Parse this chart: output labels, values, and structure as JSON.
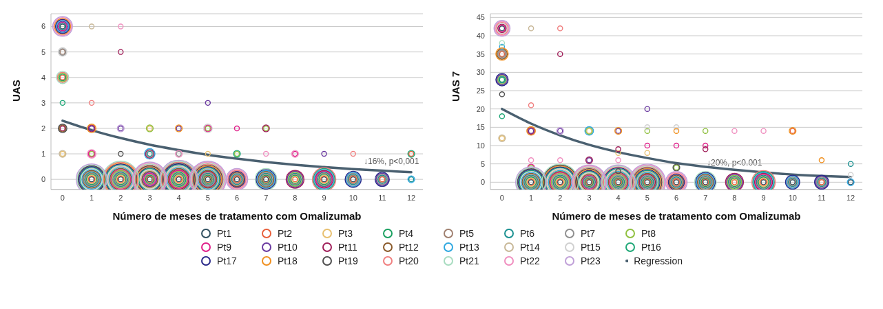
{
  "chart_data": [
    {
      "type": "bubble",
      "ylabel": "UAS",
      "xlabel": "Número de meses de tratamento com Omalizumab",
      "x": [
        0,
        1,
        2,
        3,
        4,
        5,
        6,
        7,
        8,
        9,
        10,
        11,
        12
      ],
      "xlim": [
        -0.4,
        12.4
      ],
      "xticks": [
        0,
        1,
        2,
        3,
        4,
        5,
        6,
        7,
        8,
        9,
        10,
        11,
        12
      ],
      "ylim": [
        -0.4,
        6.5
      ],
      "yticks": [
        0,
        1,
        2,
        3,
        4,
        5,
        6
      ],
      "grid": "y",
      "legend": "bottom",
      "marker": "circle",
      "annotations": [
        "↓16%, p<0,001"
      ],
      "series": [
        {
          "name": "Pt1",
          "color": "#2f4f5f",
          "values": [
            6,
            0,
            0,
            0,
            0,
            0,
            0,
            0,
            null,
            0,
            0,
            null,
            null
          ],
          "sizes": [
            0.016,
            0.016,
            0.016,
            0.016,
            0.016,
            0.016,
            0.016,
            0.016,
            null,
            0.016,
            0.016,
            null,
            null
          ]
        },
        {
          "name": "Pt2",
          "color": "#e8603c",
          "values": [
            4,
            0,
            0,
            0,
            0,
            0,
            0,
            0,
            0,
            0,
            0,
            0,
            1
          ],
          "sizes": [
            0.016,
            0.031,
            0.031,
            0.031,
            0.031,
            0.031,
            0.031,
            0.031,
            0.016,
            0.031,
            0.031,
            0.016,
            0.016
          ]
        },
        {
          "name": "Pt3",
          "color": "#e8c070",
          "values": [
            1,
            0,
            0,
            2,
            0,
            1,
            null,
            null,
            0,
            0,
            null,
            null,
            null
          ],
          "sizes": [
            0.016,
            0.05,
            0.05,
            0.016,
            0.05,
            0.016,
            null,
            null,
            0.031,
            0.05,
            null,
            null,
            null
          ]
        },
        {
          "name": "Pt4",
          "color": "#1aa060",
          "values": [
            4,
            0,
            0,
            0,
            0,
            0,
            null,
            0,
            0,
            0,
            null,
            null,
            null
          ],
          "sizes": [
            0.031,
            0.074,
            0.074,
            0.05,
            0.074,
            0.05,
            null,
            0.05,
            0.05,
            0.074,
            null,
            null,
            null
          ]
        },
        {
          "name": "Pt5",
          "color": "#a08070",
          "values": [
            5,
            0,
            0,
            0,
            0,
            0,
            0,
            0,
            0,
            0,
            0,
            0,
            null
          ],
          "sizes": [
            0.016,
            0.103,
            0.103,
            0.074,
            0.103,
            0.074,
            0.05,
            0.074,
            0.074,
            0.103,
            0.05,
            0.031,
            null
          ]
        },
        {
          "name": "Pt6",
          "color": "#1a9090",
          "values": [
            6,
            0,
            0,
            1,
            0,
            0,
            0,
            0,
            0,
            0,
            0,
            0,
            0
          ],
          "sizes": [
            0.031,
            0.136,
            0.136,
            0.016,
            0.136,
            0.103,
            0.074,
            0.103,
            0.103,
            0.136,
            0.074,
            0.05,
            0.016
          ]
        },
        {
          "name": "Pt7",
          "color": "#909090",
          "values": [
            5,
            0,
            0,
            1,
            1,
            0,
            0,
            0,
            null,
            null,
            0,
            0,
            null
          ],
          "sizes": [
            0.031,
            0.174,
            0.174,
            0.031,
            0.016,
            0.136,
            0.103,
            0.136,
            null,
            null,
            0.103,
            0.074,
            null
          ]
        },
        {
          "name": "Pt8",
          "color": "#90c040",
          "values": [
            4,
            1,
            0,
            2,
            0,
            2,
            1,
            2,
            0,
            null,
            null,
            null,
            null
          ],
          "sizes": [
            0.05,
            0.016,
            0.217,
            0.031,
            0.174,
            0.016,
            0.016,
            0.016,
            0.136,
            null,
            null,
            null,
            null
          ]
        },
        {
          "name": "Pt9",
          "color": "#e0208a",
          "values": [
            6,
            1,
            0,
            0,
            0,
            2,
            2,
            null,
            1,
            0,
            null,
            null,
            null
          ],
          "sizes": [
            0.05,
            0.031,
            0.265,
            0.103,
            0.217,
            0.031,
            0.016,
            null,
            0.016,
            0.174,
            null,
            null,
            null
          ]
        },
        {
          "name": "Pt10",
          "color": "#6a3aa0",
          "values": [
            6,
            2,
            2,
            0,
            2,
            3,
            null,
            null,
            0,
            1,
            null,
            0,
            null
          ],
          "sizes": [
            0.074,
            0.016,
            0.016,
            0.136,
            0.016,
            0.016,
            null,
            null,
            0.174,
            0.016,
            null,
            0.103,
            null
          ]
        },
        {
          "name": "Pt11",
          "color": "#a0205a",
          "values": [
            2,
            2,
            5,
            1,
            0,
            0,
            null,
            2,
            0,
            0,
            null,
            null,
            null
          ],
          "sizes": [
            0.016,
            0.031,
            0.016,
            0.05,
            0.265,
            0.174,
            null,
            0.031,
            0.217,
            0.217,
            null,
            null,
            null
          ]
        },
        {
          "name": "Pt12",
          "color": "#8a5a2a",
          "values": [
            2,
            0,
            0,
            0,
            0,
            0,
            0,
            0,
            null,
            null,
            null,
            null,
            null
          ],
          "sizes": [
            0.031,
            0.217,
            0.317,
            0.174,
            0.317,
            0.217,
            0.136,
            0.174,
            null,
            null,
            null,
            null,
            null
          ]
        },
        {
          "name": "Pt13",
          "color": "#30a8e0",
          "values": [
            6,
            0,
            0,
            1,
            0,
            0,
            null,
            0,
            null,
            0,
            0,
            null,
            0
          ],
          "sizes": [
            0.103,
            0.265,
            0.374,
            0.074,
            0.374,
            0.265,
            null,
            0.217,
            null,
            0.265,
            0.136,
            null,
            0.031
          ]
        },
        {
          "name": "Pt14",
          "color": "#c8b898",
          "values": [
            1,
            6,
            0,
            0,
            0,
            0,
            null,
            null,
            null,
            null,
            null,
            null,
            null
          ],
          "sizes": [
            0.031,
            0.016,
            0.436,
            0.217,
            0.436,
            0.317,
            null,
            null,
            null,
            null,
            null,
            null,
            null
          ]
        },
        {
          "name": "Pt15",
          "color": "#d0d0d0",
          "values": [
            5,
            0,
            0,
            0,
            0,
            2,
            null,
            null,
            null,
            null,
            null,
            null,
            null
          ],
          "sizes": [
            0.05,
            0.317,
            0.502,
            0.265,
            0.502,
            0.05,
            null,
            null,
            null,
            null,
            null,
            null,
            null
          ]
        },
        {
          "name": "Pt16",
          "color": "#20a878",
          "values": [
            3,
            0,
            0,
            0,
            0,
            0,
            1,
            null,
            null,
            0,
            null,
            null,
            1
          ],
          "sizes": [
            0.016,
            0.374,
            0.574,
            0.317,
            0.574,
            0.374,
            0.031,
            null,
            null,
            0.317,
            null,
            null,
            0.031
          ]
        },
        {
          "name": "Pt17",
          "color": "#2a2a8a",
          "values": [
            6,
            0,
            0,
            0,
            0,
            0,
            0,
            0,
            null,
            null,
            0,
            0,
            null
          ],
          "sizes": [
            0.136,
            0.436,
            0.649,
            0.374,
            0.649,
            0.436,
            0.174,
            0.265,
            null,
            null,
            0.174,
            0.136,
            null
          ]
        },
        {
          "name": "Pt18",
          "color": "#f09020",
          "values": [
            6,
            2,
            0,
            0,
            2,
            0,
            null,
            null,
            null,
            null,
            null,
            null,
            null
          ],
          "sizes": [
            0.174,
            0.05,
            0.73,
            0.436,
            0.031,
            0.502,
            null,
            null,
            null,
            null,
            null,
            null,
            null
          ]
        },
        {
          "name": "Pt19",
          "color": "#505050",
          "values": [
            2,
            0,
            1,
            0,
            0,
            0,
            null,
            null,
            null,
            null,
            null,
            null,
            null
          ],
          "sizes": [
            0.05,
            0.502,
            0.016,
            0.502,
            0.73,
            0.574,
            null,
            null,
            null,
            null,
            null,
            null,
            null
          ]
        },
        {
          "name": "Pt20",
          "color": "#f08080",
          "values": [
            4,
            3,
            0,
            0,
            0,
            0,
            0,
            null,
            null,
            0,
            1,
            null,
            null
          ],
          "sizes": [
            0.074,
            0.016,
            0.815,
            0.574,
            0.815,
            0.649,
            0.217,
            null,
            null,
            0.374,
            0.016,
            null,
            null
          ]
        },
        {
          "name": "Pt21",
          "color": "#a8dcc0",
          "values": [
            4,
            0,
            0,
            0,
            0,
            0,
            null,
            0,
            null,
            null,
            null,
            null,
            null
          ],
          "sizes": [
            0.103,
            0.574,
            0.905,
            0.649,
            0.905,
            0.73,
            null,
            0.317,
            null,
            null,
            null,
            null,
            null
          ]
        },
        {
          "name": "Pt22",
          "color": "#f090c0",
          "values": [
            6,
            1,
            6,
            0,
            1,
            0,
            0,
            1,
            1,
            null,
            null,
            null,
            null
          ],
          "sizes": [
            0.217,
            0.05,
            0.016,
            0.73,
            0.031,
            0.815,
            0.265,
            0.016,
            0.031,
            null,
            null,
            null,
            null
          ]
        },
        {
          "name": "Pt23",
          "color": "#c0a0d8",
          "values": [
            6,
            0,
            2,
            0,
            0,
            0,
            0,
            null,
            null,
            null,
            null,
            null,
            null
          ],
          "sizes": [
            0.265,
            0.649,
            0.031,
            0.815,
            1,
            0.905,
            0.317,
            null,
            null,
            null,
            null,
            null,
            null
          ]
        },
        {
          "name": "Regression",
          "type": "line",
          "marker": "none",
          "color": "#4a6070",
          "values": [
            2.3,
            1.93,
            1.62,
            1.36,
            1.15,
            0.96,
            0.81,
            0.68,
            0.57,
            0.48,
            0.4,
            0.34,
            0.28
          ]
        }
      ]
    },
    {
      "type": "bubble",
      "ylabel": "UAS 7",
      "xlabel": "Número de meses de tratamento com Omalizumab",
      "x": [
        0,
        1,
        2,
        3,
        4,
        5,
        6,
        7,
        8,
        9,
        10,
        11,
        12
      ],
      "xlim": [
        -0.4,
        12.4
      ],
      "xticks": [
        0,
        1,
        2,
        3,
        4,
        5,
        6,
        7,
        8,
        9,
        10,
        11,
        12
      ],
      "ylim": [
        -2,
        46
      ],
      "yticks": [
        0,
        5,
        10,
        15,
        20,
        25,
        30,
        35,
        40,
        45
      ],
      "grid": "y",
      "legend": "bottom",
      "marker": "circle",
      "annotations": [
        "↓20%, p<0.001"
      ],
      "series": [
        {
          "name": "Pt1",
          "color": "#2f4f5f",
          "values": [
            42,
            0,
            0,
            0,
            0,
            0,
            0,
            0,
            null,
            0,
            0,
            null,
            0
          ],
          "sizes": [
            0.018,
            0.018,
            0.018,
            0.018,
            0.018,
            0.018,
            0.018,
            0.018,
            null,
            0.018,
            0.018,
            null,
            0.018
          ]
        },
        {
          "name": "Pt2",
          "color": "#e8603c",
          "values": [
            35,
            0,
            0,
            0,
            0,
            0,
            0,
            0,
            0,
            0,
            14,
            0,
            null
          ],
          "sizes": [
            0.018,
            0.034,
            0.034,
            0.034,
            0.034,
            0.034,
            0.034,
            0.034,
            0.018,
            0.034,
            0.018,
            0.018,
            null
          ]
        },
        {
          "name": "Pt3",
          "color": "#e8c070",
          "values": [
            12,
            0,
            0,
            14,
            8,
            8,
            null,
            null,
            0,
            0,
            null,
            null,
            null
          ],
          "sizes": [
            0.018,
            0.055,
            0.055,
            0.018,
            0.018,
            0.018,
            null,
            null,
            0.034,
            0.055,
            null,
            null,
            null
          ]
        },
        {
          "name": "Pt4",
          "color": "#1aa060",
          "values": [
            28,
            0,
            0,
            0,
            0,
            0,
            null,
            0,
            0,
            0,
            null,
            null,
            null
          ],
          "sizes": [
            0.018,
            0.082,
            0.082,
            0.055,
            0.055,
            0.055,
            null,
            0.055,
            0.055,
            0.082,
            null,
            null,
            null
          ]
        },
        {
          "name": "Pt5",
          "color": "#a08070",
          "values": [
            35,
            0,
            0,
            0,
            0,
            0,
            0,
            0,
            0,
            0,
            0,
            0,
            null
          ],
          "sizes": [
            0.034,
            0.114,
            0.114,
            0.082,
            0.082,
            0.082,
            0.055,
            0.082,
            0.082,
            0.114,
            0.034,
            0.034,
            null
          ]
        },
        {
          "name": "Pt6",
          "color": "#1a9090",
          "values": [
            28,
            0,
            0,
            0,
            0,
            0,
            0,
            0,
            0,
            0,
            0,
            0,
            5
          ],
          "sizes": [
            0.034,
            0.15,
            0.15,
            0.114,
            0.114,
            0.114,
            0.082,
            0.114,
            0.114,
            0.15,
            0.055,
            0.055,
            0.018
          ]
        },
        {
          "name": "Pt7",
          "color": "#909090",
          "values": [
            35,
            0,
            0,
            3,
            0,
            0,
            0,
            0,
            null,
            null,
            0,
            0,
            null
          ],
          "sizes": [
            0.055,
            0.192,
            0.192,
            0.018,
            0.15,
            0.15,
            0.114,
            0.15,
            null,
            null,
            0.082,
            0.082,
            null
          ]
        },
        {
          "name": "Pt8",
          "color": "#90c040",
          "values": [
            28,
            4,
            0,
            14,
            0,
            14,
            4,
            14,
            0,
            null,
            null,
            null,
            null
          ],
          "sizes": [
            0.055,
            0.018,
            0.24,
            0.034,
            0.192,
            0.018,
            0.018,
            0.018,
            0.15,
            null,
            null,
            null,
            null
          ]
        },
        {
          "name": "Pt9",
          "color": "#e0208a",
          "values": [
            42,
            4,
            0,
            0,
            0,
            10,
            10,
            10,
            null,
            0,
            null,
            null,
            null
          ],
          "sizes": [
            0.034,
            0.034,
            0.293,
            0.15,
            0.24,
            0.018,
            0.018,
            0.018,
            null,
            0.192,
            null,
            null,
            null
          ]
        },
        {
          "name": "Pt10",
          "color": "#6a3aa0",
          "values": [
            28,
            14,
            14,
            6,
            14,
            20,
            null,
            null,
            0,
            null,
            null,
            0,
            null
          ],
          "sizes": [
            0.082,
            0.018,
            0.018,
            0.018,
            0.018,
            0.018,
            null,
            null,
            0.192,
            null,
            null,
            0.114,
            null
          ]
        },
        {
          "name": "Pt11",
          "color": "#a0205a",
          "values": [
            42,
            14,
            35,
            6,
            9,
            0,
            null,
            9,
            0,
            0,
            null,
            null,
            null
          ],
          "sizes": [
            0.055,
            0.034,
            0.018,
            0.034,
            0.018,
            0.192,
            null,
            0.018,
            0.24,
            0.24,
            null,
            null,
            null
          ]
        },
        {
          "name": "Pt12",
          "color": "#8a5a2a",
          "values": [
            35,
            0,
            0,
            0,
            0,
            0,
            0,
            0,
            null,
            null,
            null,
            null,
            null
          ],
          "sizes": [
            0.082,
            0.24,
            0.35,
            0.192,
            0.293,
            0.24,
            0.15,
            0.192,
            null,
            null,
            null,
            null,
            null
          ]
        },
        {
          "name": "Pt13",
          "color": "#30a8e0",
          "values": [
            37,
            0,
            0,
            14,
            0,
            0,
            null,
            0,
            null,
            0,
            0,
            null,
            0
          ],
          "sizes": [
            0.018,
            0.293,
            0.413,
            0.055,
            0.35,
            0.293,
            null,
            0.24,
            null,
            0.293,
            0.114,
            null,
            0.034
          ]
        },
        {
          "name": "Pt14",
          "color": "#c8b898",
          "values": [
            12,
            42,
            0,
            0,
            0,
            0,
            null,
            null,
            null,
            null,
            null,
            null,
            null
          ],
          "sizes": [
            0.034,
            0.018,
            0.482,
            0.24,
            0.413,
            0.35,
            null,
            null,
            null,
            null,
            null,
            null,
            null
          ]
        },
        {
          "name": "Pt15",
          "color": "#d0d0d0",
          "values": [
            42,
            0,
            0,
            0,
            0,
            15,
            15,
            null,
            null,
            null,
            null,
            null,
            2
          ],
          "sizes": [
            0.082,
            0.35,
            0.555,
            0.293,
            0.482,
            0.018,
            0.018,
            null,
            null,
            null,
            null,
            null,
            0.018
          ]
        },
        {
          "name": "Pt16",
          "color": "#20a878",
          "values": [
            18,
            0,
            0,
            0,
            0,
            0,
            null,
            null,
            null,
            0,
            null,
            null,
            null
          ],
          "sizes": [
            0.018,
            0.413,
            0.634,
            0.35,
            0.555,
            0.413,
            null,
            null,
            null,
            0.35,
            null,
            null,
            null
          ]
        },
        {
          "name": "Pt17",
          "color": "#2a2a8a",
          "values": [
            28,
            0,
            0,
            0,
            0,
            0,
            0,
            0,
            null,
            null,
            0,
            0,
            null
          ],
          "sizes": [
            0.114,
            0.482,
            0.717,
            0.413,
            0.634,
            0.482,
            0.192,
            0.293,
            null,
            null,
            0.15,
            0.15,
            null
          ]
        },
        {
          "name": "Pt18",
          "color": "#f09020",
          "values": [
            35,
            14,
            0,
            0,
            14,
            0,
            14,
            null,
            null,
            null,
            14,
            6,
            null
          ],
          "sizes": [
            0.114,
            0.055,
            0.807,
            0.482,
            0.034,
            0.555,
            0.018,
            null,
            null,
            null,
            0.034,
            0.018,
            null
          ]
        },
        {
          "name": "Pt19",
          "color": "#505050",
          "values": [
            24,
            0,
            0,
            0,
            3,
            0,
            4,
            null,
            null,
            null,
            null,
            null,
            null
          ],
          "sizes": [
            0.018,
            0.555,
            0.901,
            0.555,
            0.018,
            0.634,
            0.034,
            null,
            null,
            null,
            null,
            null,
            null
          ]
        },
        {
          "name": "Pt20",
          "color": "#f08080",
          "values": [
            42,
            21,
            42,
            0,
            0,
            0,
            0,
            null,
            null,
            0,
            null,
            null,
            null
          ],
          "sizes": [
            0.114,
            0.018,
            0.018,
            0.634,
            0.717,
            0.717,
            0.24,
            null,
            null,
            0.413,
            null,
            null,
            null
          ]
        },
        {
          "name": "Pt21",
          "color": "#a8dcc0",
          "values": [
            38,
            0,
            0,
            0,
            0,
            0,
            null,
            0,
            null,
            null,
            null,
            null,
            null
          ],
          "sizes": [
            0.018,
            0.634,
            1,
            0.717,
            0.807,
            0.807,
            null,
            0.35,
            null,
            null,
            null,
            null,
            null
          ]
        },
        {
          "name": "Pt22",
          "color": "#f090c0",
          "values": [
            42,
            6,
            6,
            0,
            6,
            0,
            0,
            null,
            14,
            14,
            null,
            null,
            null
          ],
          "sizes": [
            0.15,
            0.018,
            0.018,
            0.807,
            0.018,
            0.901,
            0.293,
            null,
            0.018,
            0.018,
            null,
            null,
            null
          ]
        },
        {
          "name": "Pt23",
          "color": "#c0a0d8",
          "values": [
            42,
            0,
            14,
            0,
            0,
            0,
            0,
            null,
            null,
            null,
            null,
            null,
            null
          ],
          "sizes": [
            0.192,
            0.717,
            0.034,
            0.901,
            0.901,
            1,
            0.35,
            null,
            null,
            null,
            null,
            null,
            null
          ]
        },
        {
          "name": "Regression",
          "type": "line",
          "marker": "none",
          "color": "#4a6070",
          "values": [
            20,
            16,
            12.8,
            10.2,
            8.2,
            6.6,
            5.2,
            4.2,
            3.4,
            2.7,
            2.1,
            1.7,
            1.4
          ]
        }
      ]
    }
  ]
}
